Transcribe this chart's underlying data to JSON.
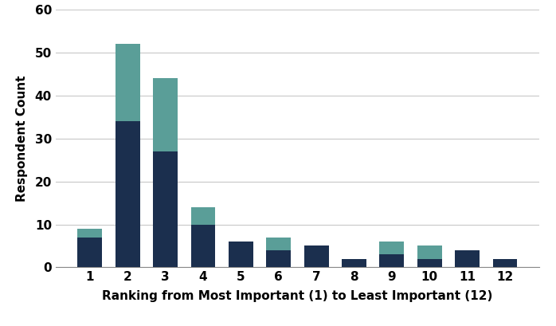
{
  "categories": [
    1,
    2,
    3,
    4,
    5,
    6,
    7,
    8,
    9,
    10,
    11,
    12
  ],
  "bottom_values": [
    7,
    34,
    27,
    10,
    6,
    4,
    5,
    2,
    3,
    2,
    4,
    2
  ],
  "top_values": [
    2,
    18,
    17,
    4,
    0,
    3,
    0,
    0,
    3,
    3,
    0,
    0
  ],
  "color_bottom": "#1b2f4e",
  "color_top": "#5a9e98",
  "ylabel": "Respondent Count",
  "xlabel": "Ranking from Most Important (1) to Least Important (12)",
  "ylim": [
    0,
    60
  ],
  "yticks": [
    0,
    10,
    20,
    30,
    40,
    50,
    60
  ],
  "bar_width": 0.65,
  "background_color": "#ffffff",
  "grid_color": "#c8c8c8",
  "font_size": 11,
  "font_weight": "bold"
}
